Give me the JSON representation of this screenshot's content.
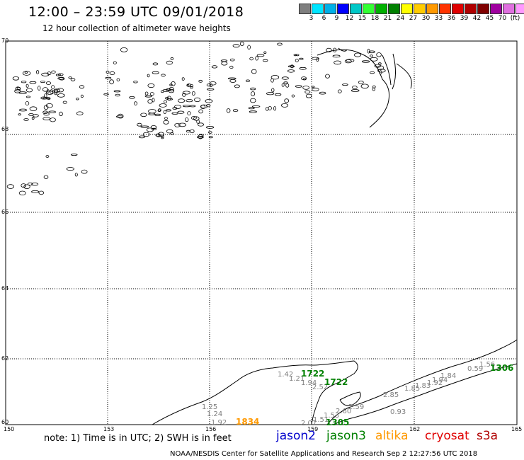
{
  "header": {
    "title": "12:00 – 23:59 UTC 09/01/2018",
    "subtitle": "12 hour collection of altimeter wave heights"
  },
  "legend_scale": {
    "swatches": [
      "#7f7f7f",
      "#00e5ff",
      "#00b0e8",
      "#0000ff",
      "#00c8c8",
      "#33ff33",
      "#00b000",
      "#008000",
      "#ffff00",
      "#ffcc00",
      "#ff9900",
      "#ff3300",
      "#e00000",
      "#b00000",
      "#800000",
      "#a000a0",
      "#e070e0",
      "#ff99ff",
      "#000000"
    ],
    "labels": [
      "3",
      "6",
      "9",
      "12",
      "15",
      "18",
      "21",
      "24",
      "27",
      "30",
      "33",
      "36",
      "39",
      "42",
      "45",
      "70",
      "(ft)"
    ]
  },
  "map": {
    "lon_ticks": [
      "150",
      "153",
      "156",
      "159",
      "162",
      "165"
    ],
    "lat_ticks": [
      "70",
      "68",
      "66",
      "64",
      "62",
      "60"
    ],
    "track_times": [
      {
        "text": "1722",
        "color": "#008000"
      },
      {
        "text": "1722",
        "color": "#008000"
      },
      {
        "text": "1305",
        "color": "#008000"
      },
      {
        "text": "1306",
        "color": "#008000"
      },
      {
        "text": "1834",
        "color": "#ff9900"
      }
    ],
    "swh_values": [
      "1.42",
      "1.21",
      "1.94",
      "2.52",
      "1.25",
      "1.24",
      "1.92",
      "2.07",
      "1.51",
      "1.53",
      "2.60",
      "2.59",
      "2.85",
      "1.85",
      "1.83",
      "1.92",
      "1.94",
      "1.84",
      "0.93",
      "0.59",
      "1.56"
    ]
  },
  "footer": {
    "note": "note: 1) Time is in UTC; 2) SWH is in feet",
    "satellites": [
      {
        "name": "jason2",
        "color": "#0000cc"
      },
      {
        "name": "jason3",
        "color": "#008000"
      },
      {
        "name": "altika",
        "color": "#ff9900"
      },
      {
        "name": "cryosat",
        "color": "#e00000"
      },
      {
        "name": "s3a",
        "color": "#b00000"
      }
    ],
    "credit": "NOAA/NESDIS Center for Satellite Applications and Research   Sep  2 12:27:56 UTC 2018"
  }
}
